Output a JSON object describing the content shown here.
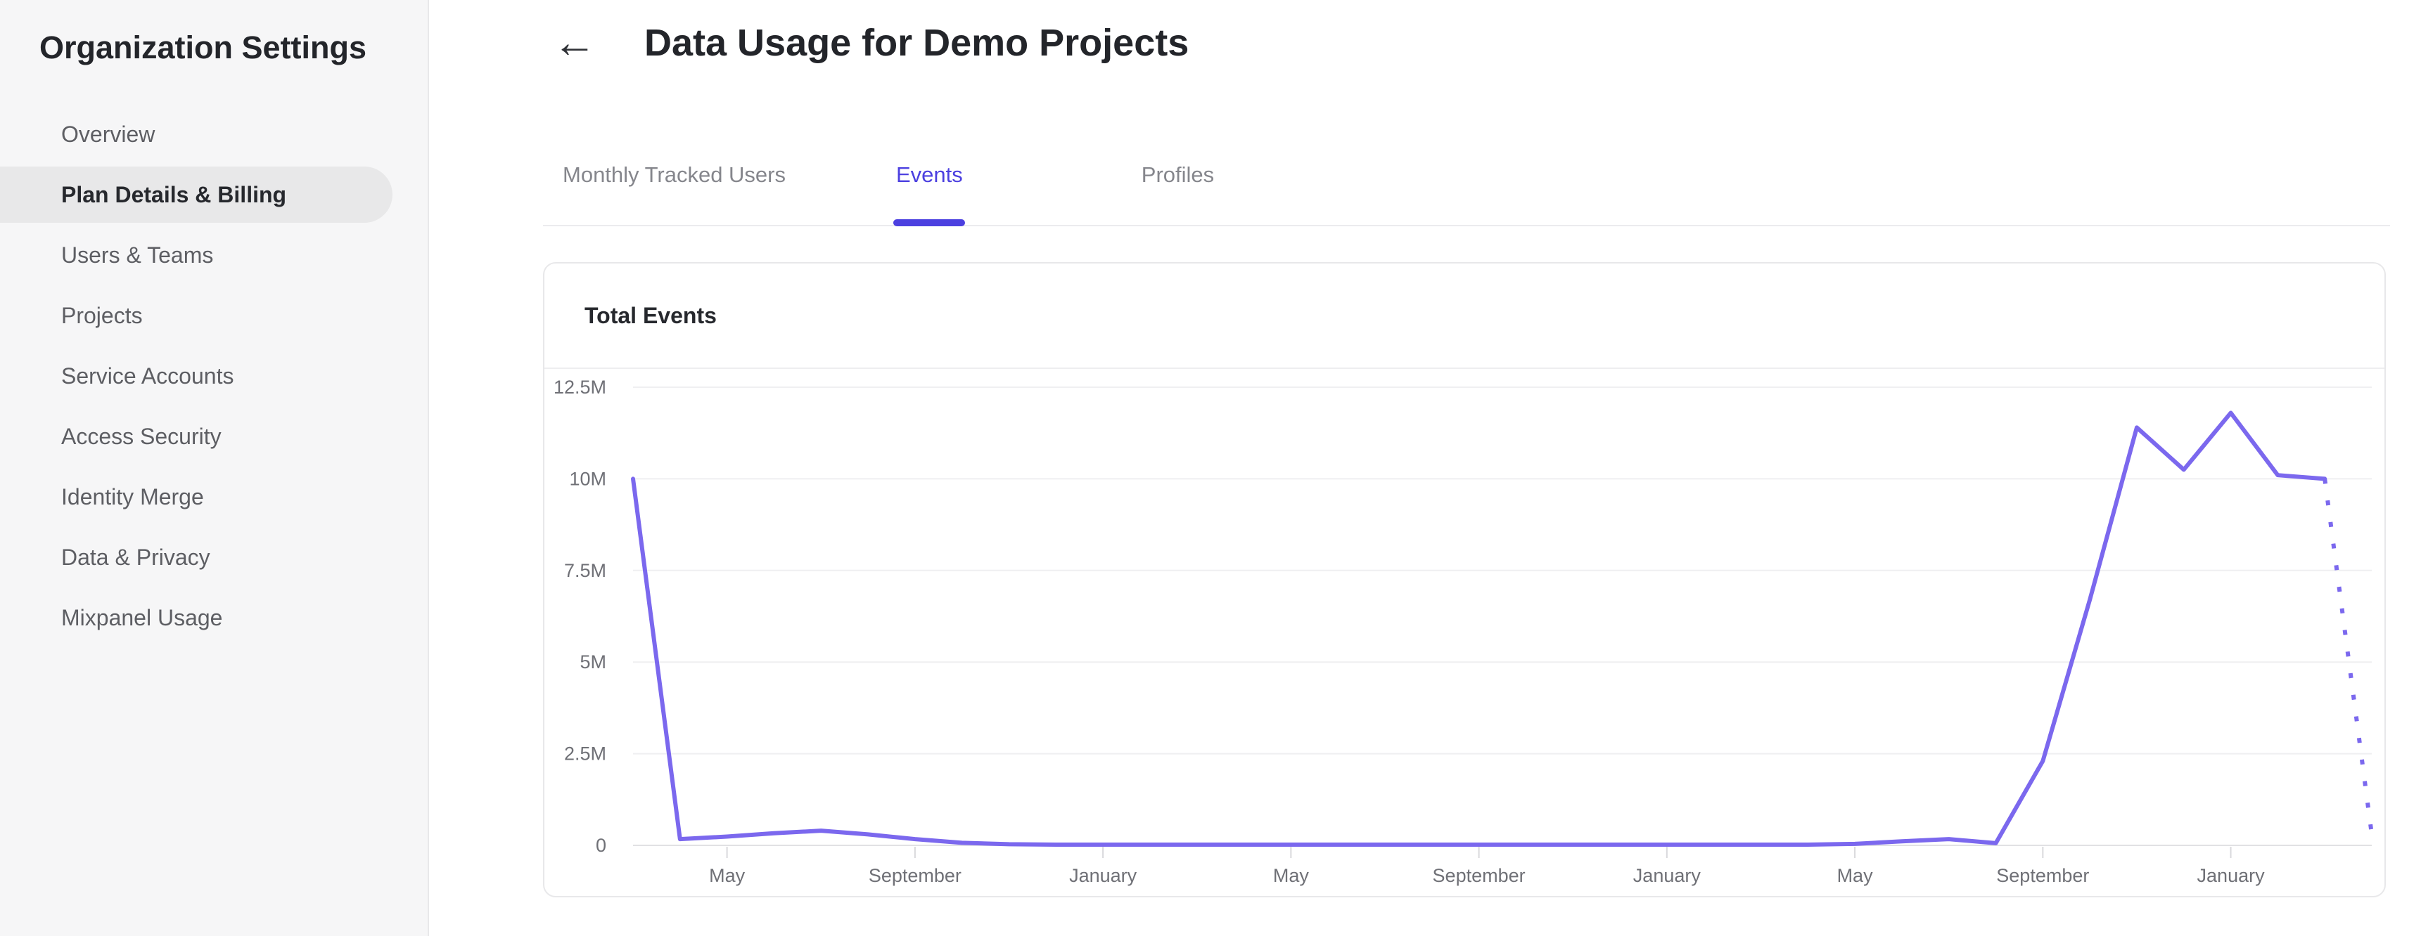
{
  "sidebar": {
    "title": "Organization Settings",
    "items": [
      {
        "label": "Overview",
        "selected": false
      },
      {
        "label": "Plan Details & Billing",
        "selected": true
      },
      {
        "label": "Users & Teams",
        "selected": false
      },
      {
        "label": "Projects",
        "selected": false
      },
      {
        "label": "Service Accounts",
        "selected": false
      },
      {
        "label": "Access Security",
        "selected": false
      },
      {
        "label": "Identity Merge",
        "selected": false
      },
      {
        "label": "Data & Privacy",
        "selected": false
      },
      {
        "label": "Mixpanel Usage",
        "selected": false
      }
    ]
  },
  "header": {
    "back_icon": "←",
    "title": "Data Usage for Demo Projects"
  },
  "tabs": [
    {
      "label": "Monthly Tracked Users",
      "active": false
    },
    {
      "label": "Events",
      "active": true
    },
    {
      "label": "Profiles",
      "active": false
    }
  ],
  "chart_data": {
    "type": "line",
    "title": "Total Events",
    "xlabel": "",
    "ylabel": "",
    "grid": true,
    "legend": false,
    "ylim": [
      0,
      12500000
    ],
    "y_tick_labels": [
      "12.5M",
      "10M",
      "7.5M",
      "5M",
      "2.5M",
      "0"
    ],
    "x_tick_labels": [
      "May",
      "September",
      "January",
      "May",
      "September",
      "January",
      "May",
      "September",
      "January"
    ],
    "x_tick_point_indices": [
      2,
      6,
      10,
      14,
      18,
      22,
      26,
      30,
      34
    ],
    "series": [
      {
        "name": "Total Events",
        "unit": "millions of events per month",
        "values": [
          10,
          0.17,
          0.24,
          0.33,
          0.4,
          0.3,
          0.17,
          0.07,
          0.03,
          0.02,
          0.02,
          0.02,
          0.02,
          0.02,
          0.02,
          0.02,
          0.02,
          0.02,
          0.02,
          0.02,
          0.02,
          0.02,
          0.02,
          0.02,
          0.02,
          0.02,
          0.04,
          0.11,
          0.17,
          0.06,
          2.3,
          6.7,
          11.4,
          10.25,
          11.8,
          10.1,
          10.0,
          0.3
        ],
        "dotted_tail_segments": 1
      }
    ]
  },
  "colors": {
    "accent": "#4c40e0",
    "line": "#7b68ee",
    "grid_line": "#efeff1",
    "axis_line": "#e1e1e4",
    "tick_mark": "#d9d9dc",
    "axis_label": "#6f7076",
    "sidebar_bg": "#f6f6f7",
    "selected_pill": "#e8e8e9",
    "card_border": "#e8e8ea",
    "text_dark": "#23252a",
    "text_muted": "#5d5e63",
    "tab_inactive": "#85868c"
  }
}
